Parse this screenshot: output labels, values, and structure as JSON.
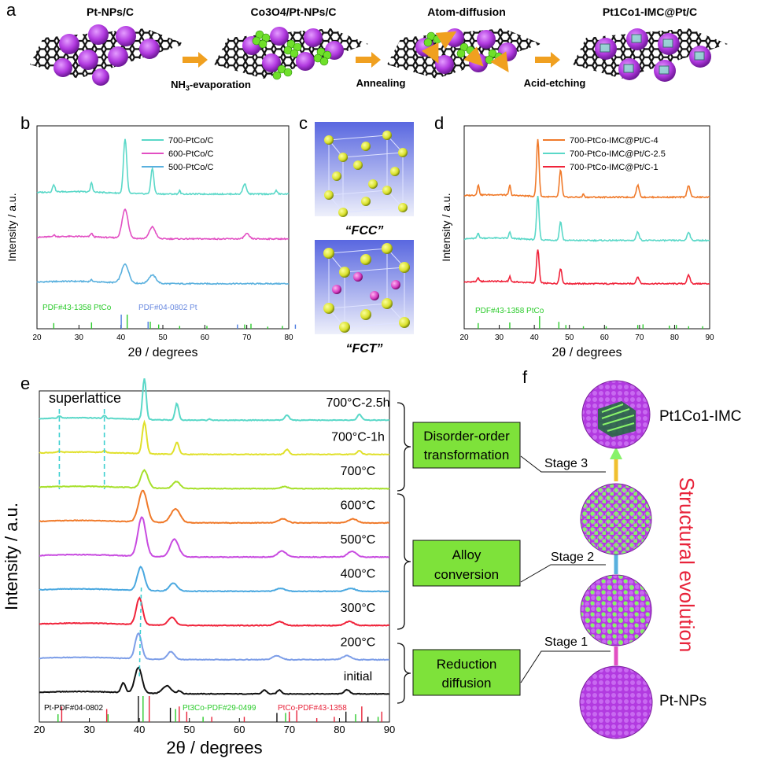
{
  "panel_a": {
    "label": "a",
    "stage_titles": [
      "Pt-NPs/C",
      "Co3O4/Pt-NPs/C",
      "Atom-diffusion",
      "Pt1Co1-IMC@Pt/C"
    ],
    "step_labels": [
      "NH3-evaporation",
      "Annealing",
      "Acid-etching"
    ],
    "step_nh3_main": "NH",
    "step_nh3_sub": "3",
    "step_nh3_tail": "-evaporation"
  },
  "panel_c": {
    "label": "c",
    "fcc": "“FCC”",
    "fct": "“FCT”"
  },
  "panel_f": {
    "label": "f",
    "right_labels": [
      "Pt1Co1-IMC",
      "Pt-NPs"
    ],
    "stages": [
      "Stage 3",
      "Stage 2",
      "Stage 1"
    ],
    "boxes": [
      [
        "Disorder-order",
        "transformation"
      ],
      [
        "Alloy",
        "conversion"
      ],
      [
        "Reduction",
        "diffusion"
      ]
    ],
    "side_title": "Structural evolution"
  },
  "colors": {
    "cyan": "#5ad8c8",
    "blue": "#59b0de",
    "magenta": "#e24fc3",
    "green_box": "#7ee23a",
    "orange": "#f07a2a",
    "red": "#f0233a",
    "sphere_purple": "#b23ae0",
    "sphere_green": "#88f26a",
    "ref_green": "#2ccb2c",
    "ref_blue": "#4c7ce0",
    "ref_red": "#e8233a",
    "ref_black": "#111111"
  },
  "chart_data": [
    {
      "panel": "b",
      "type": "line",
      "xlabel": "2θ / degrees",
      "ylabel": "Intensity / a.u.",
      "xlim": [
        20,
        80
      ],
      "xticks": [
        20,
        30,
        40,
        50,
        60,
        70,
        80
      ],
      "legend_placement": "top-right",
      "series": [
        {
          "name": "500-PtCo/C",
          "color": "#59b0de",
          "offset": 0,
          "peaks": [
            [
              41,
              0.55,
              1.2
            ],
            [
              47.5,
              0.25,
              1.2
            ],
            [
              33,
              0.05,
              0.4
            ]
          ]
        },
        {
          "name": "600-PtCo/C",
          "color": "#e24fc3",
          "offset": 1,
          "peaks": [
            [
              41,
              0.85,
              1.0
            ],
            [
              47.5,
              0.35,
              1.0
            ],
            [
              33,
              0.1,
              0.4
            ],
            [
              24,
              0.05,
              0.4
            ],
            [
              70,
              0.15,
              0.8
            ]
          ]
        },
        {
          "name": "700-PtCo/C",
          "color": "#5ad8c8",
          "offset": 2,
          "peaks": [
            [
              41,
              1.6,
              0.55
            ],
            [
              47.5,
              0.75,
              0.5
            ],
            [
              33,
              0.28,
              0.35
            ],
            [
              24,
              0.22,
              0.4
            ],
            [
              54,
              0.1,
              0.3
            ],
            [
              69.5,
              0.3,
              0.6
            ],
            [
              77,
              0.1,
              0.4
            ]
          ]
        }
      ],
      "references": [
        {
          "name": "PDF#43-1358 PtCo",
          "color": "#2ccb2c",
          "lines": [
            [
              24,
              0.4
            ],
            [
              33,
              0.45
            ],
            [
              41.5,
              1.0
            ],
            [
              47,
              0.5
            ],
            [
              49,
              0.3
            ],
            [
              54,
              0.2
            ],
            [
              60.5,
              0.2
            ],
            [
              69.5,
              0.3
            ],
            [
              71,
              0.35
            ],
            [
              75,
              0.15
            ],
            [
              78.5,
              0.2
            ]
          ]
        },
        {
          "name": "PDF#04-0802 Pt",
          "color": "#4c7ce0",
          "lines": [
            [
              39.8,
              1.0
            ],
            [
              46.2,
              0.5
            ],
            [
              67.5,
              0.3
            ],
            [
              81.3,
              0.3
            ]
          ]
        }
      ]
    },
    {
      "panel": "d",
      "type": "line",
      "xlabel": "2θ / degrees",
      "ylabel": "Intensity / a.u.",
      "xlim": [
        20,
        90
      ],
      "xticks": [
        20,
        30,
        40,
        50,
        60,
        70,
        80,
        90
      ],
      "legend_placement": "top-right",
      "series": [
        {
          "name": "700-PtCo-IMC@Pt/C-1",
          "color": "#f0233a",
          "offset": 0,
          "peaks": [
            [
              41,
              1.0,
              0.5
            ],
            [
              47.5,
              0.45,
              0.5
            ],
            [
              33,
              0.15,
              0.35
            ],
            [
              24,
              0.1,
              0.4
            ],
            [
              69.5,
              0.2,
              0.6
            ],
            [
              84,
              0.25,
              0.6
            ]
          ]
        },
        {
          "name": "700-PtCo-IMC@Pt/C-2.5",
          "color": "#5ad8c8",
          "offset": 1,
          "peaks": [
            [
              41,
              1.3,
              0.5
            ],
            [
              47.5,
              0.55,
              0.5
            ],
            [
              33,
              0.2,
              0.35
            ],
            [
              24,
              0.15,
              0.4
            ],
            [
              69.5,
              0.25,
              0.6
            ],
            [
              84,
              0.25,
              0.6
            ]
          ]
        },
        {
          "name": "700-PtCo-IMC@Pt/C-4",
          "color": "#f07a2a",
          "offset": 2,
          "peaks": [
            [
              41,
              1.7,
              0.5
            ],
            [
              47.5,
              0.8,
              0.5
            ],
            [
              33,
              0.3,
              0.35
            ],
            [
              24,
              0.3,
              0.4
            ],
            [
              54,
              0.1,
              0.3
            ],
            [
              69.5,
              0.35,
              0.6
            ],
            [
              84,
              0.35,
              0.6
            ]
          ]
        }
      ],
      "references": [
        {
          "name": "PDF#43-1358 PtCo",
          "color": "#2ccb2c",
          "lines": [
            [
              24,
              0.45
            ],
            [
              33,
              0.5
            ],
            [
              41.5,
              1.0
            ],
            [
              47,
              0.55
            ],
            [
              49,
              0.3
            ],
            [
              54,
              0.2
            ],
            [
              60.5,
              0.2
            ],
            [
              69.5,
              0.3
            ],
            [
              71,
              0.35
            ],
            [
              78.5,
              0.25
            ],
            [
              80.5,
              0.3
            ],
            [
              84,
              0.2
            ],
            [
              88,
              0.2
            ]
          ]
        }
      ]
    },
    {
      "panel": "e",
      "type": "line",
      "xlabel": "2θ / degrees",
      "ylabel": "Intensity / a.u.",
      "xlim": [
        20,
        90
      ],
      "xticks": [
        20,
        30,
        40,
        50,
        60,
        70,
        80,
        90
      ],
      "annotation": "superlattice",
      "series": [
        {
          "name": "initial",
          "color": "#111111",
          "offset": 0,
          "peaks": [
            [
              39.8,
              1.3,
              1.0
            ],
            [
              36.8,
              0.5,
              0.6
            ],
            [
              45.5,
              0.4,
              1.2
            ],
            [
              48,
              0.15,
              0.6
            ],
            [
              65,
              0.2,
              0.6
            ],
            [
              68,
              0.2,
              0.6
            ],
            [
              81.5,
              0.2,
              0.8
            ]
          ]
        },
        {
          "name": "200°C",
          "color": "#7d9ee8",
          "offset": 1,
          "peaks": [
            [
              39.8,
              1.3,
              0.9
            ],
            [
              46.3,
              0.4,
              1.0
            ],
            [
              67.5,
              0.2,
              1.2
            ],
            [
              81.5,
              0.2,
              1.2
            ]
          ]
        },
        {
          "name": "300°C",
          "color": "#f0233a",
          "offset": 2,
          "peaks": [
            [
              40.0,
              1.35,
              0.9
            ],
            [
              46.5,
              0.4,
              1.0
            ],
            [
              68,
              0.2,
              1.2
            ],
            [
              82,
              0.2,
              1.2
            ]
          ]
        },
        {
          "name": "400°C",
          "color": "#4aa8e0",
          "offset": 3,
          "peaks": [
            [
              40.3,
              1.2,
              1.0
            ],
            [
              46.8,
              0.4,
              1.1
            ],
            [
              68.2,
              0.15,
              1.2
            ],
            [
              82.3,
              0.15,
              1.2
            ]
          ]
        },
        {
          "name": "500°C",
          "color": "#c84be0",
          "offset": 4,
          "peaks": [
            [
              40.5,
              2.0,
              1.1
            ],
            [
              47.0,
              0.9,
              1.2
            ],
            [
              68.5,
              0.3,
              1.2
            ],
            [
              82.5,
              0.3,
              1.2
            ]
          ]
        },
        {
          "name": "600°C",
          "color": "#f07a2a",
          "offset": 5,
          "peaks": [
            [
              40.7,
              1.6,
              1.2
            ],
            [
              47.2,
              0.7,
              1.3
            ],
            [
              68.7,
              0.2,
              1.2
            ],
            [
              82.7,
              0.2,
              1.2
            ]
          ]
        },
        {
          "name": "700°C",
          "color": "#a6e02a",
          "offset": 6,
          "peaks": [
            [
              41.0,
              0.9,
              1.0
            ],
            [
              47.4,
              0.35,
              1.0
            ],
            [
              69,
              0.1,
              1.0
            ]
          ]
        },
        {
          "name": "700°C-1h",
          "color": "#e0e02a",
          "offset": 7,
          "peaks": [
            [
              41.0,
              1.6,
              0.6
            ],
            [
              47.5,
              0.6,
              0.6
            ],
            [
              33,
              0.08,
              0.4
            ],
            [
              24,
              0.05,
              0.4
            ],
            [
              69.5,
              0.25,
              0.6
            ],
            [
              84,
              0.2,
              0.6
            ]
          ]
        },
        {
          "name": "700°C-2.5h",
          "color": "#5ad8c8",
          "offset": 8,
          "peaks": [
            [
              41.0,
              2.1,
              0.5
            ],
            [
              47.5,
              0.85,
              0.5
            ],
            [
              33,
              0.15,
              0.35
            ],
            [
              24,
              0.12,
              0.4
            ],
            [
              54,
              0.08,
              0.3
            ],
            [
              69.5,
              0.25,
              0.6
            ],
            [
              84,
              0.3,
              0.6
            ]
          ]
        }
      ],
      "references": [
        {
          "name": "Pt-PDF#04-0802",
          "color": "#111111",
          "lines": [
            [
              39.8,
              1.0
            ],
            [
              46.2,
              0.55
            ],
            [
              67.5,
              0.35
            ],
            [
              81.3,
              0.4
            ],
            [
              85.7,
              0.2
            ]
          ]
        },
        {
          "name": "Pt3Co-PDF#29-0499",
          "color": "#2ccb2c",
          "lines": [
            [
              23.5,
              0.3
            ],
            [
              33.5,
              0.3
            ],
            [
              40.5,
              1.0
            ],
            [
              47.0,
              0.5
            ],
            [
              52.5,
              0.2
            ],
            [
              69.0,
              0.35
            ],
            [
              83.0,
              0.3
            ],
            [
              87.5,
              0.2
            ]
          ]
        },
        {
          "name": "PtCo-PDF#43-1358",
          "color": "#e8233a",
          "lines": [
            [
              24,
              0.6
            ],
            [
              33,
              0.5
            ],
            [
              41.5,
              1.0
            ],
            [
              47.5,
              0.6
            ],
            [
              49,
              0.4
            ],
            [
              54,
              0.2
            ],
            [
              60.5,
              0.2
            ],
            [
              69.5,
              0.4
            ],
            [
              71,
              0.45
            ],
            [
              75,
              0.15
            ],
            [
              78.5,
              0.2
            ],
            [
              84,
              0.6
            ],
            [
              88,
              0.4
            ]
          ]
        }
      ]
    }
  ]
}
